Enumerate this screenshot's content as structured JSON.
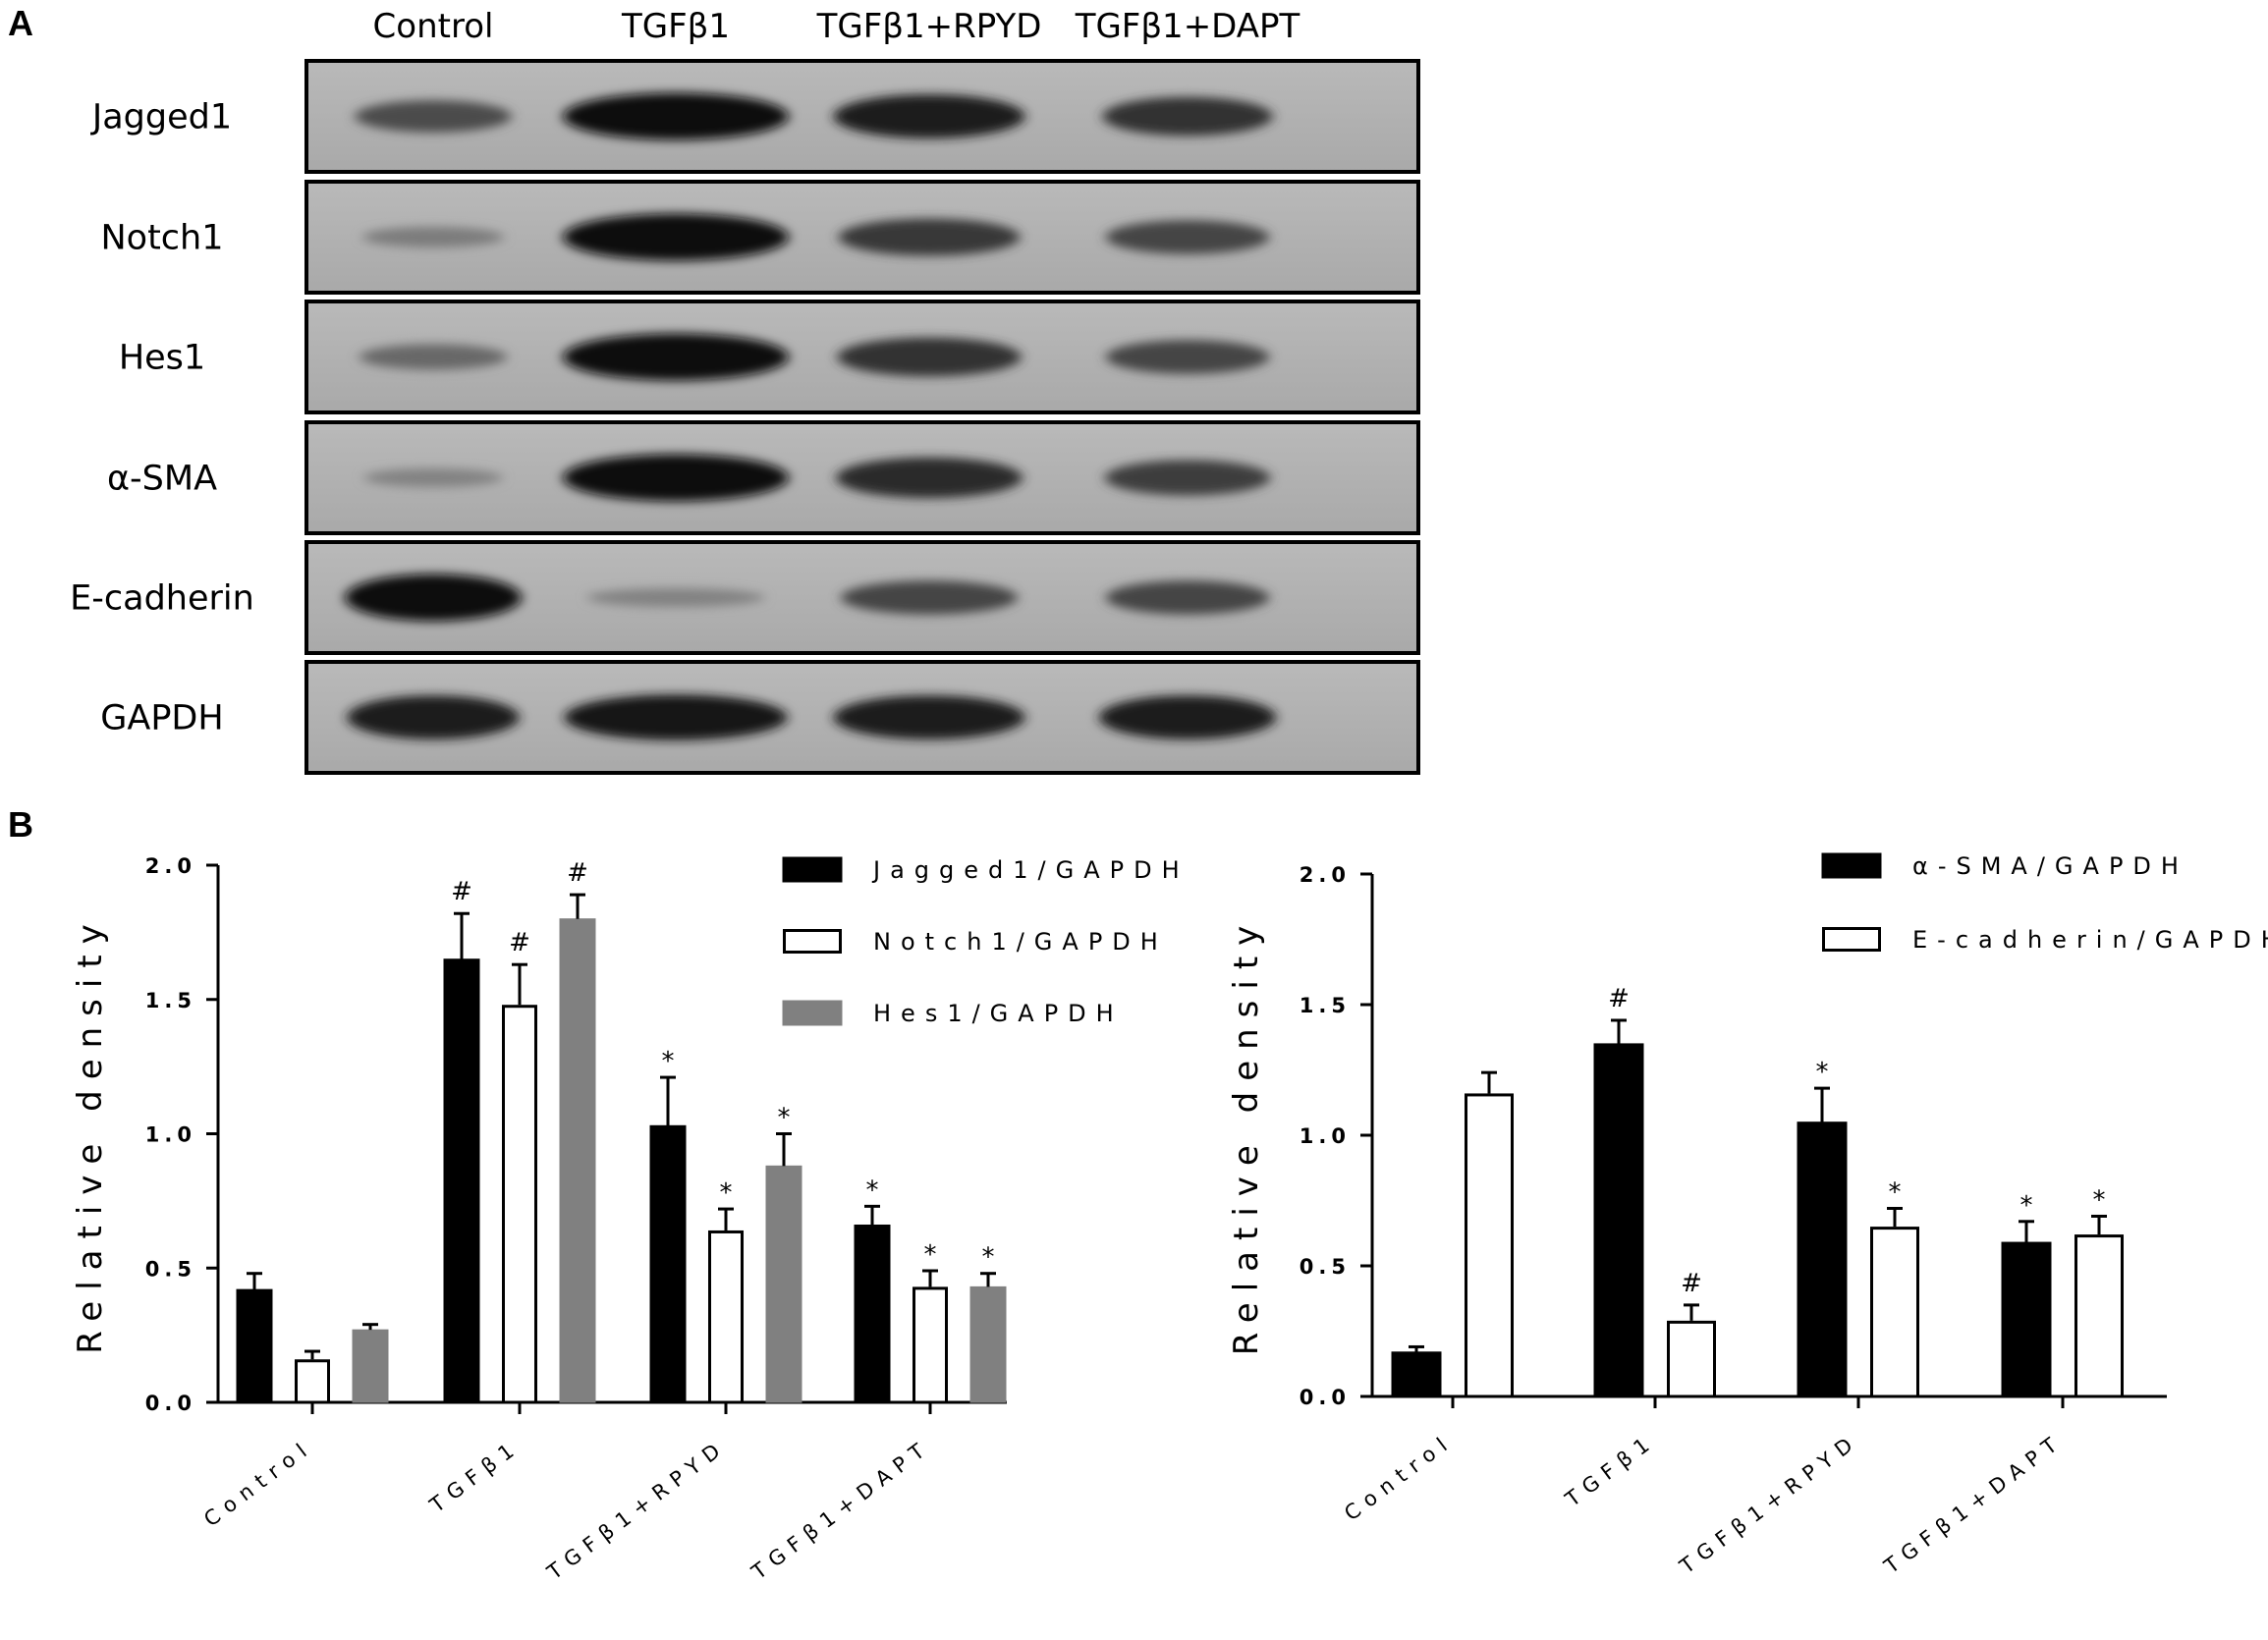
{
  "panel_a": {
    "letter": "A",
    "lanes": [
      "Control",
      "TGFβ1",
      "TGFβ1+RPYD",
      "TGFβ1+DAPT"
    ],
    "rows": [
      {
        "protein": "Jagged1",
        "intensity": [
          0.55,
          1.0,
          0.9,
          0.75
        ]
      },
      {
        "protein": "Notch1",
        "intensity": [
          0.2,
          1.0,
          0.7,
          0.6
        ]
      },
      {
        "protein": "Hes1",
        "intensity": [
          0.35,
          1.0,
          0.75,
          0.6
        ]
      },
      {
        "protein": "α-SMA",
        "intensity": [
          0.15,
          1.0,
          0.8,
          0.65
        ]
      },
      {
        "protein": "E-cadherin",
        "intensity": [
          1.0,
          0.15,
          0.6,
          0.6
        ]
      },
      {
        "protein": "GAPDH",
        "intensity": [
          0.9,
          0.95,
          0.9,
          0.9
        ]
      }
    ]
  },
  "panel_b": {
    "letter": "B"
  },
  "colors": {
    "black": "#000000",
    "white": "#ffffff",
    "gray": "#808080"
  },
  "chart_data": [
    {
      "type": "bar",
      "ylabel": "Relative density",
      "ylim": [
        0,
        2.0
      ],
      "yticks": [
        "0.0",
        "0.5",
        "1.0",
        "1.5",
        "2.0"
      ],
      "categories": [
        "Control",
        "TGFβ1",
        "TGFβ1+RPYD",
        "TGFβ1+DAPT"
      ],
      "legend_position": "top-right",
      "series": [
        {
          "name": "Jagged1/GAPDH",
          "fill": "black",
          "values": [
            0.42,
            1.65,
            1.03,
            0.66
          ],
          "errors": [
            0.06,
            0.17,
            0.18,
            0.07
          ],
          "marks": [
            "",
            "#",
            "*",
            "*"
          ]
        },
        {
          "name": "Notch1/GAPDH",
          "fill": "white",
          "values": [
            0.16,
            1.48,
            0.64,
            0.43
          ],
          "errors": [
            0.03,
            0.15,
            0.08,
            0.06
          ],
          "marks": [
            "",
            "#",
            "*",
            "*"
          ]
        },
        {
          "name": "Hes1/GAPDH",
          "fill": "gray",
          "values": [
            0.27,
            1.8,
            0.88,
            0.43
          ],
          "errors": [
            0.02,
            0.09,
            0.12,
            0.05
          ],
          "marks": [
            "",
            "#",
            "*",
            "*"
          ]
        }
      ]
    },
    {
      "type": "bar",
      "ylabel": "Relative density",
      "ylim": [
        0,
        2.0
      ],
      "yticks": [
        "0.0",
        "0.5",
        "1.0",
        "1.5",
        "2.0"
      ],
      "categories": [
        "Control",
        "TGFβ1",
        "TGFβ1+RPYD",
        "TGFβ1+DAPT"
      ],
      "legend_position": "top-right",
      "series": [
        {
          "name": "α-SMA/GAPDH",
          "fill": "black",
          "values": [
            0.17,
            1.35,
            1.05,
            0.59
          ],
          "errors": [
            0.02,
            0.09,
            0.13,
            0.08
          ],
          "marks": [
            "",
            "#",
            "*",
            "*"
          ]
        },
        {
          "name": "E-cadherin/GAPDH",
          "fill": "white",
          "values": [
            1.16,
            0.29,
            0.65,
            0.62
          ],
          "errors": [
            0.08,
            0.06,
            0.07,
            0.07
          ],
          "marks": [
            "",
            "#",
            "*",
            "*"
          ]
        }
      ]
    }
  ]
}
